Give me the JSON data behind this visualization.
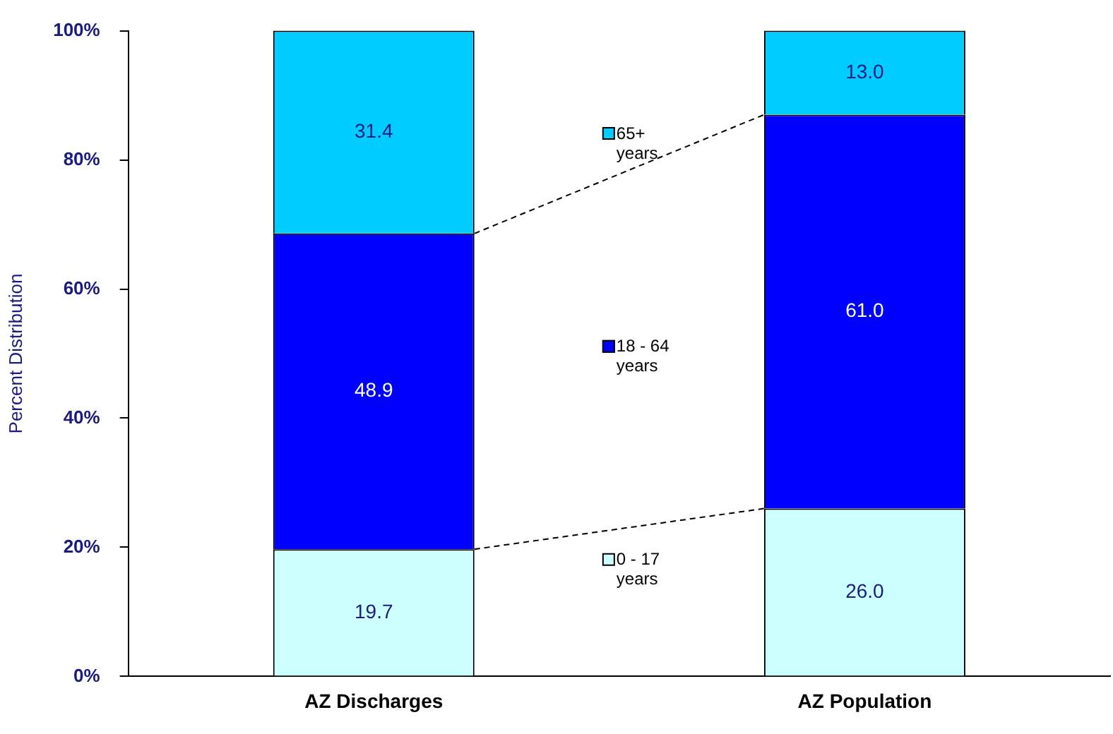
{
  "chart_data": {
    "type": "bar",
    "stacked": true,
    "ylabel": "Percent Distribution",
    "categories": [
      "AZ Discharges",
      "AZ Population"
    ],
    "series": [
      {
        "name": "0 - 17 years",
        "color": "#ccffff",
        "values": [
          19.7,
          26.0
        ],
        "value_labels": [
          "19.7",
          "26.0"
        ]
      },
      {
        "name": "18 - 64 years",
        "color": "#0000ff",
        "values": [
          48.9,
          61.0
        ],
        "value_labels": [
          "48.9",
          "61.0"
        ]
      },
      {
        "name": "65+ years",
        "color": "#00ccff",
        "values": [
          31.4,
          13.0
        ],
        "value_labels": [
          "31.4",
          "13.0"
        ]
      }
    ],
    "ylim": [
      0,
      100
    ],
    "yticks": [
      {
        "value": 0,
        "label": "0%"
      },
      {
        "value": 20,
        "label": "20%"
      },
      {
        "value": 40,
        "label": "40%"
      },
      {
        "value": 60,
        "label": "60%"
      },
      {
        "value": 80,
        "label": "80%"
      },
      {
        "value": 100,
        "label": "100%"
      }
    ],
    "grid": false,
    "legend": "center"
  }
}
